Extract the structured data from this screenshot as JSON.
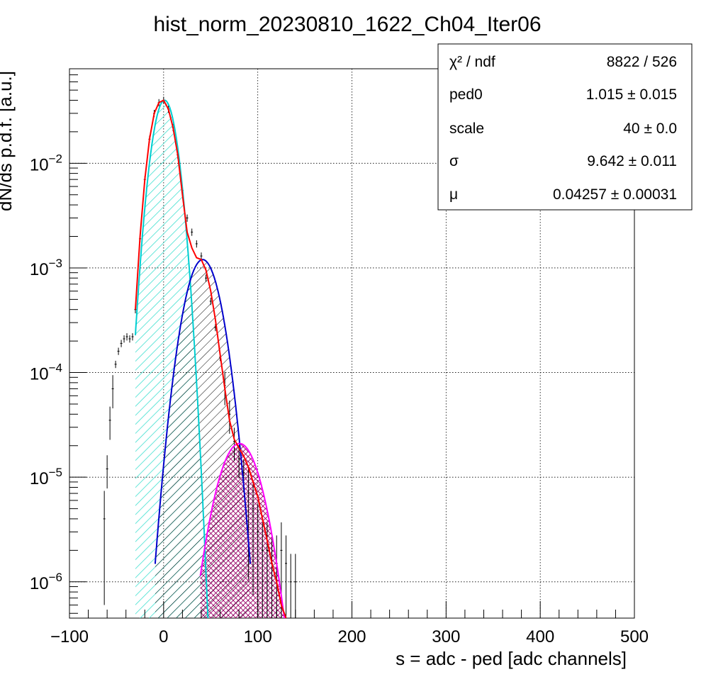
{
  "chart_data": {
    "type": "line",
    "title": "hist_norm_20230810_1622_Ch04_Iter06",
    "xlabel": "s = adc - ped [adc channels]",
    "ylabel": "dN/ds p.d.f. [a.u.]",
    "xlim": [
      -100,
      500
    ],
    "ylim": [
      4.5e-07,
      0.08
    ],
    "y_scale": "log",
    "grid": true,
    "x_ticks": [
      -100,
      0,
      100,
      200,
      300,
      400,
      500
    ],
    "x_tick_labels": [
      "−100",
      "0",
      "100",
      "200",
      "300",
      "400",
      "500"
    ],
    "y_ticks": [
      1e-06,
      1e-05,
      0.0001,
      0.001,
      0.01
    ],
    "y_tick_labels": [
      {
        "base": "10",
        "exp": "−6"
      },
      {
        "base": "10",
        "exp": "−5"
      },
      {
        "base": "10",
        "exp": "−4"
      },
      {
        "base": "10",
        "exp": "−3"
      },
      {
        "base": "10",
        "exp": "−2"
      }
    ],
    "stats": {
      "rows": [
        {
          "key": "χ² / ndf",
          "value": "8822 / 526"
        },
        {
          "key": "ped0",
          "value": "1.015  ± 0.015"
        },
        {
          "key": "scale",
          "value": "40  ± 0.0"
        },
        {
          "key": "σ",
          "value": "9.642  ± 0.011"
        },
        {
          "key": "μ",
          "value": "0.04257  ± 0.00031"
        }
      ]
    },
    "series": [
      {
        "kind": "data",
        "color": "#000000",
        "x": [
          -63,
          -60,
          -57,
          -54,
          -51,
          -48,
          -45,
          -42,
          -39,
          -36,
          -33,
          -30,
          -25,
          -20,
          -15,
          -10,
          -5,
          0,
          5,
          10,
          15,
          20,
          25,
          30,
          35,
          40,
          45,
          50,
          55,
          60,
          65,
          70,
          75,
          80,
          85,
          90,
          95,
          100,
          105,
          110,
          115,
          120,
          125,
          130,
          135,
          140
        ],
        "y": [
          4e-06,
          1.2e-05,
          3.5e-05,
          7e-05,
          0.00012,
          0.00016,
          0.00019,
          0.00021,
          0.00022,
          0.00021,
          0.00022,
          0.0004,
          0.0019,
          0.007,
          0.017,
          0.03,
          0.038,
          0.04,
          0.033,
          0.022,
          0.012,
          0.0055,
          0.003,
          0.0022,
          0.0017,
          0.0013,
          0.0008,
          0.00048,
          0.00027,
          0.00014,
          7.5e-05,
          4e-05,
          2.2e-05,
          1.5e-05,
          1.1e-05,
          7e-06,
          5e-06,
          3e-06,
          2e-06,
          2e-06,
          1.5e-06,
          1.5e-06,
          2e-06,
          1.5e-06,
          1e-06,
          1e-06
        ]
      },
      {
        "kind": "total",
        "color": "#ff0000",
        "x": [
          -30,
          -25,
          -20,
          -15,
          -10,
          -5,
          0,
          5,
          10,
          15,
          20,
          25,
          30,
          35,
          40,
          45,
          50,
          55,
          60,
          65,
          70,
          75,
          80,
          85,
          90,
          95,
          100,
          105,
          110,
          115,
          120,
          125,
          130
        ],
        "y": [
          0.0004,
          0.002,
          0.007,
          0.017,
          0.03,
          0.038,
          0.04,
          0.033,
          0.022,
          0.012,
          0.005,
          0.0022,
          0.00155,
          0.00125,
          0.0012,
          0.00095,
          0.0006,
          0.00032,
          0.00015,
          7e-05,
          3.5e-05,
          2.3e-05,
          1.9e-05,
          1.6e-05,
          1.25e-05,
          9e-06,
          6.5e-06,
          4e-06,
          2.5e-06,
          1.5e-06,
          1e-06,
          6e-07,
          4.5e-07
        ]
      },
      {
        "kind": "component",
        "color": "#00ced1",
        "fill": "#40e0d0",
        "mu": 1.015,
        "sigma": 9.642,
        "peak": 0.04,
        "range": [
          -30,
          48
        ]
      },
      {
        "kind": "component",
        "color": "#0000cc",
        "fill": "#000000",
        "mu": 41.5,
        "sigma": 13.8,
        "peak": 0.0012,
        "range": [
          -9,
          92
        ]
      },
      {
        "kind": "component",
        "color": "#ff00ff",
        "fill": "#990066",
        "mu": 80.5,
        "sigma": 17.2,
        "peak": 2.1e-05,
        "range": [
          39,
          133
        ]
      }
    ]
  }
}
